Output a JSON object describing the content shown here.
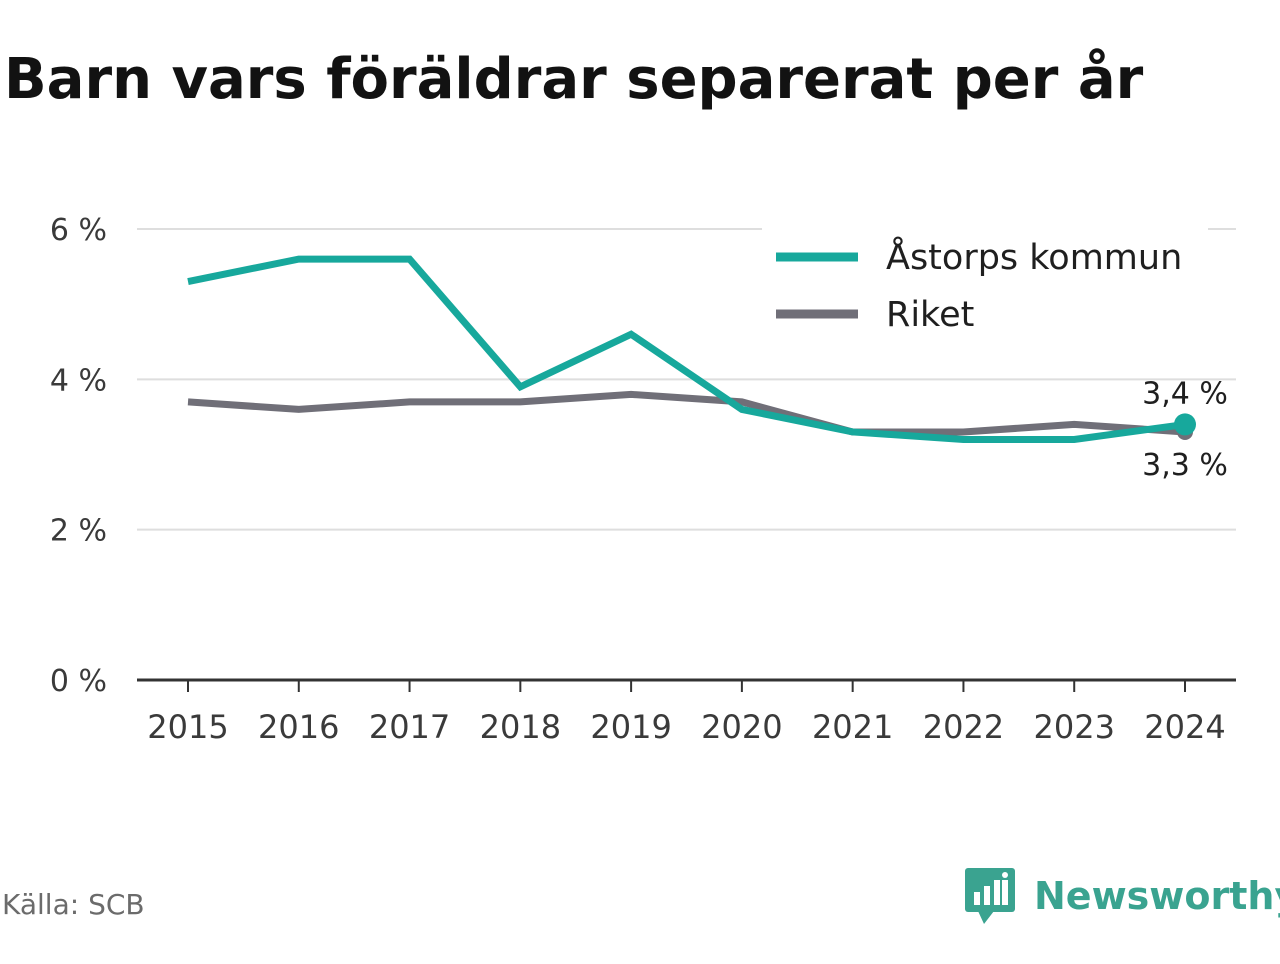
{
  "title": "Barn vars föräldrar separerat per år",
  "source": "Källa: SCB",
  "brand": {
    "name": "Newsworthy",
    "icon": "newsworthy-logo-icon",
    "color": "#3aa390"
  },
  "chart_data": {
    "type": "line",
    "title": "Barn vars föräldrar separerat per år",
    "x": [
      "2015",
      "2016",
      "2017",
      "2018",
      "2019",
      "2020",
      "2021",
      "2022",
      "2023",
      "2024"
    ],
    "series": [
      {
        "name": "Åstorps kommun",
        "color": "#17a89c",
        "values": [
          5.3,
          5.6,
          5.6,
          3.9,
          4.6,
          3.6,
          3.3,
          3.2,
          3.2,
          3.4
        ],
        "end_label": "3,4 %"
      },
      {
        "name": "Riket",
        "color": "#706f78",
        "values": [
          3.7,
          3.6,
          3.7,
          3.7,
          3.8,
          3.7,
          3.3,
          3.3,
          3.4,
          3.3
        ],
        "end_label": "3,3 %"
      }
    ],
    "y_ticks": [
      0,
      2,
      4,
      6
    ],
    "y_tick_labels": [
      "0 %",
      "2 %",
      "4 %",
      "6 %"
    ],
    "ylim": [
      0,
      6
    ],
    "grid": true,
    "legend_position": "top-right",
    "xlabel": "",
    "ylabel": ""
  }
}
